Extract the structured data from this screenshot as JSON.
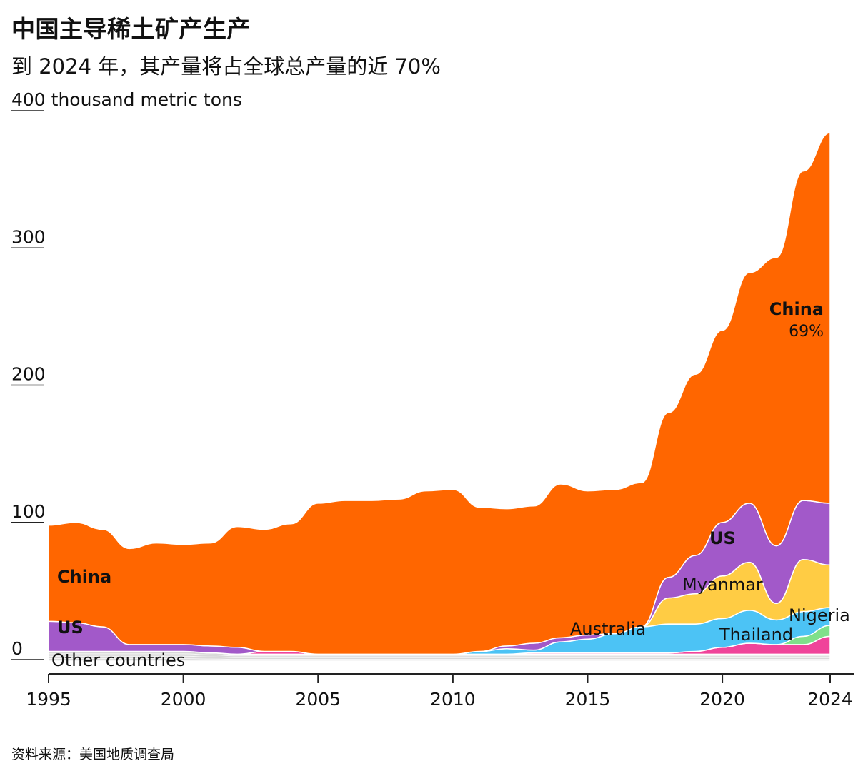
{
  "title": "中国主导稀土矿产生产",
  "subtitle": "到 2024 年，其产量将占全球总产量的近 70%",
  "source": "资料来源：美国地质调查局",
  "colors": {
    "china": "#ff6600",
    "us": "#a259c9",
    "myanmar": "#ffcc44",
    "australia": "#4cc3f5",
    "thailand": "#f0449a",
    "nigeria": "#7fe08a",
    "other": "#d9d9d9",
    "axis": "#222222"
  },
  "chart_data": {
    "type": "area",
    "stacked": true,
    "title": "中国主导稀土矿产生产",
    "ylabel": "thousand metric tons",
    "ylim": [
      0,
      400
    ],
    "yticks": [
      {
        "value": 0,
        "label": "0"
      },
      {
        "value": 100,
        "label": "100"
      },
      {
        "value": 200,
        "label": "200"
      },
      {
        "value": 300,
        "label": "300"
      },
      {
        "value": 400,
        "label": "400 thousand metric tons"
      }
    ],
    "xlim": [
      1995,
      2024
    ],
    "xticks": [
      1995,
      2000,
      2005,
      2010,
      2015,
      2020,
      2024
    ],
    "x": [
      1995,
      1996,
      1997,
      1998,
      1999,
      2000,
      2001,
      2002,
      2003,
      2004,
      2005,
      2006,
      2007,
      2008,
      2009,
      2010,
      2011,
      2012,
      2013,
      2014,
      2015,
      2016,
      2017,
      2018,
      2019,
      2020,
      2021,
      2022,
      2023,
      2024
    ],
    "series": [
      {
        "name": "Other countries",
        "key": "other",
        "values": [
          7,
          7,
          7,
          7,
          7,
          7,
          6,
          5,
          5,
          5,
          5,
          5,
          5,
          5,
          5,
          5,
          5,
          5,
          5,
          5,
          5,
          5,
          5,
          5,
          5,
          5,
          5,
          5,
          5,
          5
        ]
      },
      {
        "name": "Thailand",
        "key": "thailand",
        "values": [
          0,
          0,
          0,
          0,
          0,
          0,
          0,
          0,
          2,
          2,
          0,
          0,
          0,
          0,
          0,
          0,
          0,
          0,
          1,
          1,
          1,
          1,
          1,
          1,
          2,
          5,
          8,
          7,
          7,
          13
        ]
      },
      {
        "name": "Nigeria",
        "key": "nigeria",
        "values": [
          0,
          0,
          0,
          0,
          0,
          0,
          0,
          0,
          0,
          0,
          0,
          0,
          0,
          0,
          0,
          0,
          0,
          0,
          0,
          0,
          0,
          0,
          0,
          0,
          0,
          0,
          0,
          0,
          6,
          8
        ]
      },
      {
        "name": "Australia",
        "key": "australia",
        "values": [
          0,
          0,
          0,
          0,
          0,
          0,
          0,
          0,
          0,
          0,
          0,
          0,
          0,
          0,
          0,
          0,
          2,
          4,
          2,
          8,
          10,
          14,
          19,
          21,
          20,
          21,
          24,
          18,
          18,
          13
        ]
      },
      {
        "name": "Myanmar",
        "key": "myanmar",
        "values": [
          0,
          0,
          0,
          0,
          0,
          0,
          0,
          0,
          0,
          0,
          0,
          0,
          0,
          0,
          0,
          0,
          0,
          0,
          0,
          0,
          0,
          0,
          0,
          19,
          22,
          31,
          35,
          12,
          38,
          31
        ]
      },
      {
        "name": "US",
        "key": "us",
        "values": [
          22,
          21,
          18,
          5,
          5,
          5,
          5,
          5,
          0,
          0,
          0,
          0,
          0,
          0,
          0,
          0,
          0,
          2,
          5,
          3,
          3,
          0,
          0,
          15,
          28,
          39,
          43,
          42,
          43,
          45
        ]
      },
      {
        "name": "China",
        "key": "china",
        "values": [
          70,
          73,
          71,
          70,
          74,
          73,
          75,
          88,
          89,
          93,
          110,
          112,
          112,
          113,
          119,
          120,
          105,
          100,
          100,
          112,
          105,
          105,
          105,
          120,
          132,
          140,
          168,
          210,
          240,
          270
        ]
      }
    ],
    "labels": [
      {
        "text": "China",
        "series": "china",
        "bold": true
      },
      {
        "text": "US",
        "series": "us",
        "bold": true
      },
      {
        "text": "Other countries",
        "series": "other",
        "bold": false
      },
      {
        "text": "US",
        "series": "us",
        "bold": true
      },
      {
        "text": "Myanmar",
        "series": "myanmar",
        "bold": false
      },
      {
        "text": "Australia",
        "series": "australia",
        "bold": false
      },
      {
        "text": "Thailand",
        "series": "thailand",
        "bold": false
      },
      {
        "text": "Nigeria",
        "series": "nigeria",
        "bold": false
      },
      {
        "text": "China",
        "series": "china",
        "bold": true
      }
    ],
    "share_label": "69%"
  }
}
